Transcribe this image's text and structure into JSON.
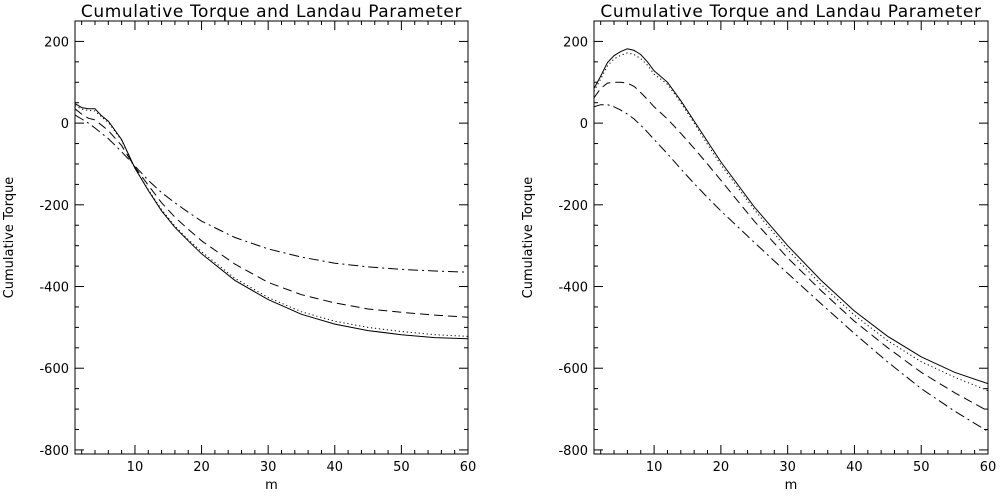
{
  "chart_data": [
    {
      "type": "line",
      "title": "Cumulative Torque and Landau Parameter",
      "xlabel": "m",
      "ylabel": "Cumulative Torque",
      "xlim": [
        1,
        60
      ],
      "ylim": [
        -810,
        250
      ],
      "xticks": [
        10,
        20,
        30,
        40,
        50,
        60
      ],
      "yticks": [
        -800,
        -600,
        -400,
        -200,
        0,
        200
      ],
      "x": [
        1,
        2,
        3,
        4,
        5,
        6,
        8,
        10,
        12,
        14,
        16,
        18,
        20,
        25,
        30,
        35,
        40,
        45,
        50,
        55,
        60
      ],
      "series": [
        {
          "style": "solid",
          "values": [
            48,
            38,
            35,
            35,
            18,
            5,
            -40,
            -110,
            -165,
            -215,
            -255,
            -288,
            -320,
            -385,
            -432,
            -468,
            -492,
            -508,
            -518,
            -525,
            -528
          ]
        },
        {
          "style": "dotted",
          "values": [
            43,
            34,
            31,
            30,
            15,
            2,
            -42,
            -110,
            -163,
            -212,
            -252,
            -285,
            -315,
            -380,
            -427,
            -462,
            -485,
            -500,
            -510,
            -518,
            -522
          ]
        },
        {
          "style": "dashed",
          "values": [
            35,
            22,
            12,
            8,
            -5,
            -18,
            -55,
            -108,
            -152,
            -195,
            -230,
            -260,
            -288,
            -345,
            -390,
            -420,
            -440,
            -455,
            -463,
            -470,
            -475
          ]
        },
        {
          "style": "dashdot",
          "values": [
            20,
            10,
            0,
            -12,
            -25,
            -38,
            -70,
            -105,
            -140,
            -170,
            -195,
            -218,
            -240,
            -280,
            -308,
            -328,
            -343,
            -352,
            -358,
            -362,
            -365
          ]
        }
      ]
    },
    {
      "type": "line",
      "title": "Cumulative Torque and Landau Parameter",
      "xlabel": "m",
      "ylabel": "Cumulative Torque",
      "xlim": [
        1,
        60
      ],
      "ylim": [
        -810,
        250
      ],
      "xticks": [
        10,
        20,
        30,
        40,
        50,
        60
      ],
      "yticks": [
        -800,
        -600,
        -400,
        -200,
        0,
        200
      ],
      "x": [
        1,
        2,
        3,
        4,
        5,
        6,
        7,
        8,
        9,
        10,
        12,
        14,
        16,
        18,
        20,
        25,
        30,
        35,
        40,
        45,
        50,
        55,
        60
      ],
      "series": [
        {
          "style": "solid",
          "values": [
            85,
            115,
            148,
            165,
            175,
            182,
            178,
            168,
            150,
            128,
            100,
            55,
            5,
            -45,
            -95,
            -205,
            -300,
            -385,
            -460,
            -522,
            -572,
            -610,
            -638
          ]
        },
        {
          "style": "dotted",
          "values": [
            78,
            108,
            140,
            157,
            166,
            172,
            168,
            158,
            142,
            120,
            95,
            50,
            0,
            -52,
            -102,
            -212,
            -310,
            -395,
            -470,
            -533,
            -584,
            -622,
            -655
          ]
        },
        {
          "style": "dashed",
          "values": [
            62,
            85,
            98,
            100,
            100,
            98,
            90,
            75,
            58,
            40,
            10,
            -25,
            -62,
            -100,
            -140,
            -240,
            -330,
            -410,
            -485,
            -550,
            -610,
            -660,
            -705
          ]
        },
        {
          "style": "dashdot",
          "values": [
            40,
            45,
            45,
            40,
            32,
            22,
            10,
            -5,
            -22,
            -40,
            -75,
            -112,
            -148,
            -182,
            -215,
            -292,
            -368,
            -442,
            -515,
            -585,
            -650,
            -705,
            -755
          ]
        }
      ]
    }
  ]
}
